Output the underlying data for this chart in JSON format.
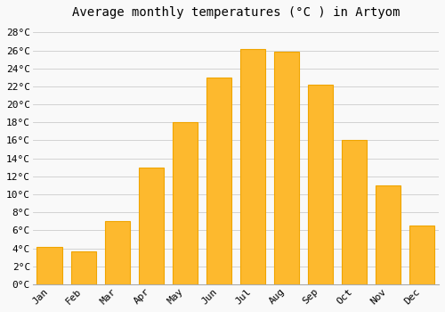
{
  "title": "Average monthly temperatures (°C ) in Artyom",
  "months": [
    "Jan",
    "Feb",
    "Mar",
    "Apr",
    "May",
    "Jun",
    "Jul",
    "Aug",
    "Sep",
    "Oct",
    "Nov",
    "Dec"
  ],
  "values": [
    4.2,
    3.7,
    7.0,
    13.0,
    18.0,
    23.0,
    26.2,
    25.9,
    22.2,
    16.0,
    11.0,
    6.5
  ],
  "bar_color": "#FDB92E",
  "bar_edge_color": "#F0A500",
  "background_color": "#f9f9f9",
  "grid_color": "#cccccc",
  "ylim_max": 29,
  "ytick_step": 2,
  "title_fontsize": 10,
  "tick_fontsize": 8,
  "font_family": "monospace"
}
